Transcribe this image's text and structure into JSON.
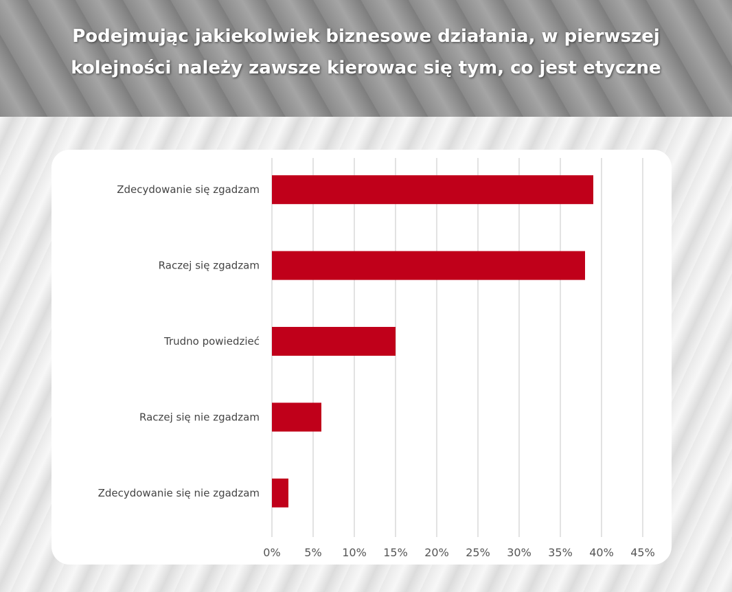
{
  "header": {
    "title_line1": "Podejmując jakiekolwiek biznesowe działania, w pierwszej",
    "title_line2": "kolejności należy zawsze kierowac się tym, co jest etyczne"
  },
  "chart_data": {
    "type": "bar",
    "orientation": "horizontal",
    "title": "Podejmując jakiekolwiek biznesowe działania, w pierwszej kolejności należy zawsze kierowac się tym, co jest etyczne",
    "categories": [
      "Zdecydowanie się zgadzam",
      "Raczej się zgadzam",
      "Trudno powiedzieć",
      "Raczej się nie zgadzam",
      "Zdecydowanie się nie zgadzam"
    ],
    "values": [
      39,
      38,
      15,
      6,
      2
    ],
    "unit": "%",
    "xlim": [
      0,
      45
    ],
    "xticks": [
      "0%",
      "5%",
      "10%",
      "15%",
      "20%",
      "25%",
      "30%",
      "35%",
      "40%",
      "45%"
    ],
    "grid": true,
    "bar_color": "#c0001a"
  }
}
